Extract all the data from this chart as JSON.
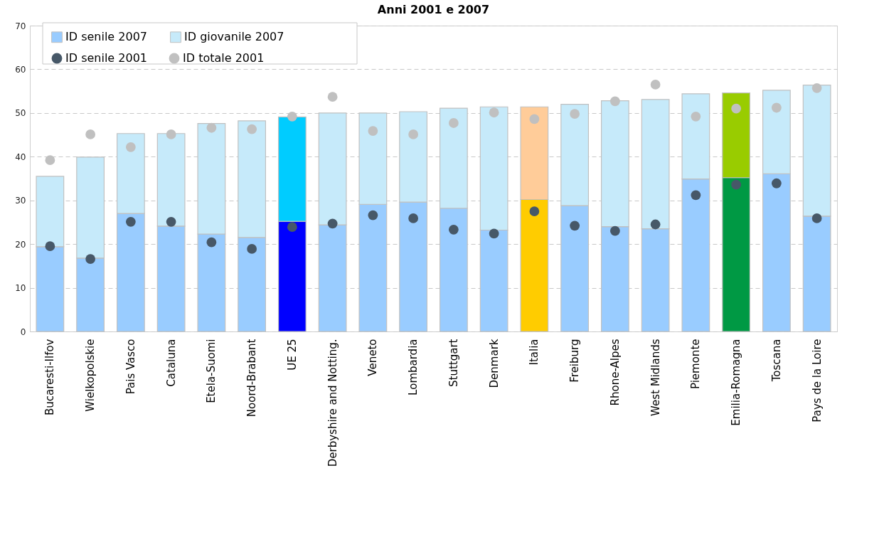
{
  "chart_data": {
    "type": "bar",
    "title": "Anni 2001 e 2007",
    "stacked": true,
    "categories": [
      "Bucaresti-Ilfov",
      "Wielkopolskie",
      "Pais Vasco",
      "Cataluna",
      "Etela-Suomi",
      "Noord-Brabant",
      "UE 25",
      "Derbyshire and Notting.",
      "Veneto",
      "Lombardia",
      "Stuttgart",
      "Denmark",
      "Italia",
      "Freiburg",
      "Rhone-Alpes",
      "West Midlands",
      "Piemonte",
      "Emilia-Romagna",
      "Toscana",
      "Pays de la Loire"
    ],
    "series": [
      {
        "name": "ID senile 2007",
        "color": "#99ccff",
        "colors": [
          "#99ccff",
          "#99ccff",
          "#99ccff",
          "#99ccff",
          "#99ccff",
          "#99ccff",
          "#0000ff",
          "#99ccff",
          "#99ccff",
          "#99ccff",
          "#99ccff",
          "#99ccff",
          "#ffcc00",
          "#99ccff",
          "#99ccff",
          "#99ccff",
          "#99ccff",
          "#009944",
          "#99ccff",
          "#99ccff"
        ],
        "values": [
          19.4,
          16.8,
          27.0,
          24.1,
          22.3,
          21.5,
          25.2,
          24.4,
          29.1,
          29.6,
          28.2,
          23.2,
          30.2,
          28.8,
          24.0,
          23.5,
          34.9,
          35.2,
          36.1,
          26.4
        ]
      },
      {
        "name": "ID giovanile 2007",
        "color": "#c6eafa",
        "colors": [
          "#c6eafa",
          "#c6eafa",
          "#c6eafa",
          "#c6eafa",
          "#c6eafa",
          "#c6eafa",
          "#00ccff",
          "#c6eafa",
          "#c6eafa",
          "#c6eafa",
          "#c6eafa",
          "#c6eafa",
          "#ffcc99",
          "#c6eafa",
          "#c6eafa",
          "#c6eafa",
          "#c6eafa",
          "#99cc00",
          "#c6eafa",
          "#c6eafa"
        ],
        "values": [
          16.1,
          23.1,
          18.3,
          21.2,
          25.3,
          26.7,
          23.9,
          25.6,
          20.9,
          20.7,
          22.9,
          28.2,
          21.2,
          23.2,
          28.8,
          29.6,
          19.5,
          19.4,
          19.1,
          30.0
        ]
      },
      {
        "name": "ID senile 2001",
        "type": "scatter",
        "color": "#475868",
        "x": [
          "Bucaresti-Ilfov",
          "Wielkopolskie",
          "Pais Vasco",
          "Cataluna",
          "Etela-Suomi",
          "Noord-Brabant",
          "UE 25",
          "Derbyshire and Notting.",
          "Veneto",
          "Lombardia",
          "Stuttgart",
          "Denmark",
          "Italia",
          "Freiburg",
          "Rhone-Alpes",
          "West Midlands",
          "Piemonte",
          "Emilia-Romagna",
          "Toscana",
          "Pays de la Loire"
        ],
        "values": [
          19.5,
          16.6,
          25.1,
          25.1,
          20.4,
          18.9,
          23.9,
          24.7,
          26.6,
          25.9,
          23.3,
          22.4,
          27.5,
          24.2,
          23.0,
          24.5,
          31.2,
          33.6,
          33.9,
          25.9
        ]
      },
      {
        "name": "ID totale 2001",
        "type": "scatter",
        "color": "#c0c0c0",
        "x": [
          "Bucaresti-Ilfov",
          "Wielkopolskie",
          "Pais Vasco",
          "Cataluna",
          "Etela-Suomi",
          "Noord-Brabant",
          "UE 25",
          "Derbyshire and Notting.",
          "Veneto",
          "Lombardia",
          "Stuttgart",
          "Denmark",
          "Italia",
          "Freiburg",
          "Rhone-Alpes",
          "West Midlands",
          "Piemonte",
          "Emilia-Romagna",
          "Toscana",
          "Pays de la Loire"
        ],
        "values": [
          39.2,
          45.1,
          42.2,
          45.1,
          46.6,
          46.3,
          49.2,
          53.7,
          45.9,
          45.1,
          47.7,
          50.1,
          48.6,
          49.8,
          52.7,
          56.5,
          49.2,
          51.0,
          51.2,
          55.7
        ]
      }
    ],
    "ylim": [
      0,
      70
    ],
    "yticks": [
      0,
      10,
      20,
      30,
      40,
      50,
      60,
      70
    ],
    "grid": "y",
    "legend": "top left",
    "marker": "circle"
  }
}
